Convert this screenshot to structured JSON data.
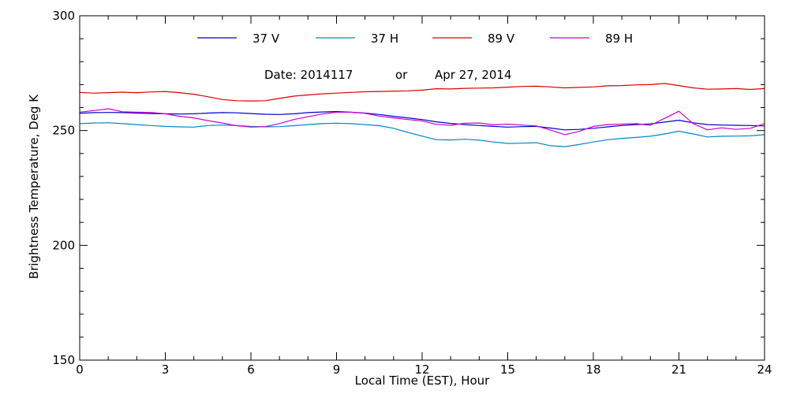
{
  "chart_data": {
    "type": "line",
    "title": "",
    "xlabel": "Local Time (EST), Hour",
    "ylabel": "Brightness Temperature, Deg K",
    "xlim": [
      0,
      24
    ],
    "ylim": [
      150,
      300
    ],
    "x_major_ticks": [
      0,
      3,
      6,
      9,
      12,
      15,
      18,
      21,
      24
    ],
    "y_major_ticks": [
      150,
      200,
      250,
      300
    ],
    "x_minor_step": 1,
    "y_minor_step": 10,
    "grid": false,
    "legend_position": "top",
    "annotation": {
      "date_label": "Date: 2014117",
      "or_label": "or",
      "date_text": "Apr 27, 2014"
    },
    "x": [
      0,
      0.5,
      1,
      1.5,
      2,
      2.5,
      3,
      3.5,
      4,
      4.5,
      5,
      5.5,
      6,
      6.5,
      7,
      7.5,
      8,
      8.5,
      9,
      9.5,
      10,
      10.5,
      11,
      11.5,
      12,
      12.5,
      13,
      13.5,
      14,
      14.5,
      15,
      15.5,
      16,
      16.5,
      17,
      17.5,
      18,
      18.5,
      19,
      19.5,
      20,
      20.5,
      21,
      21.5,
      22,
      22.5,
      23,
      23.5,
      24
    ],
    "series": [
      {
        "name": "37 V",
        "color": "#0000cc",
        "values": [
          257.5,
          257.8,
          257.9,
          257.8,
          257.6,
          257.4,
          257.3,
          257.2,
          257.3,
          257.6,
          257.8,
          257.7,
          257.4,
          257.1,
          257.0,
          257.3,
          257.8,
          258.1,
          258.3,
          258.0,
          257.6,
          257.0,
          256.2,
          255.5,
          254.8,
          253.8,
          253.1,
          252.6,
          252.2,
          251.8,
          251.5,
          251.7,
          251.8,
          251.1,
          250.3,
          250.5,
          251.0,
          251.6,
          252.2,
          252.6,
          252.9,
          253.7,
          254.5,
          253.4,
          252.6,
          252.4,
          252.3,
          252.2,
          252.0
        ]
      },
      {
        "name": "37 H",
        "color": "#0088cc",
        "values": [
          253.0,
          253.3,
          253.4,
          253.0,
          252.6,
          252.2,
          251.8,
          251.6,
          251.5,
          252.2,
          252.4,
          252.2,
          251.8,
          251.6,
          251.7,
          252.1,
          252.6,
          253.0,
          253.2,
          253.0,
          252.6,
          252.1,
          251.0,
          249.2,
          247.6,
          246.0,
          245.9,
          246.2,
          245.8,
          245.0,
          244.4,
          244.5,
          244.7,
          243.4,
          243.0,
          243.9,
          245.0,
          246.0,
          246.6,
          247.0,
          247.5,
          248.5,
          249.7,
          248.5,
          247.2,
          247.5,
          247.6,
          247.7,
          248.2
        ]
      },
      {
        "name": "89 V",
        "color": "#dd0000",
        "values": [
          266.6,
          266.3,
          266.5,
          266.7,
          266.5,
          266.8,
          267.0,
          266.5,
          265.8,
          264.7,
          263.5,
          263.0,
          262.9,
          263.0,
          264.0,
          265.0,
          265.5,
          266.0,
          266.3,
          266.6,
          266.9,
          267.0,
          267.2,
          267.3,
          267.6,
          268.2,
          268.1,
          268.4,
          268.5,
          268.6,
          268.9,
          269.2,
          269.3,
          269.0,
          268.6,
          268.8,
          269.0,
          269.5,
          269.6,
          269.9,
          270.0,
          270.5,
          269.6,
          268.6,
          268.0,
          268.1,
          268.3,
          267.9,
          268.3
        ]
      },
      {
        "name": "89 H",
        "color": "#cc00cc",
        "values": [
          258.0,
          258.7,
          259.5,
          258.2,
          258.0,
          257.9,
          257.3,
          256.2,
          255.5,
          254.3,
          253.3,
          252.1,
          251.5,
          251.7,
          253.0,
          254.8,
          256.0,
          257.2,
          258.0,
          258.0,
          257.5,
          256.3,
          255.5,
          254.8,
          254.2,
          252.7,
          252.3,
          253.2,
          253.3,
          252.5,
          252.8,
          252.4,
          252.0,
          250.2,
          248.2,
          249.6,
          251.8,
          252.6,
          252.8,
          253.0,
          252.3,
          255.3,
          258.4,
          253.0,
          250.3,
          251.2,
          250.5,
          251.0,
          253.0
        ]
      }
    ]
  }
}
